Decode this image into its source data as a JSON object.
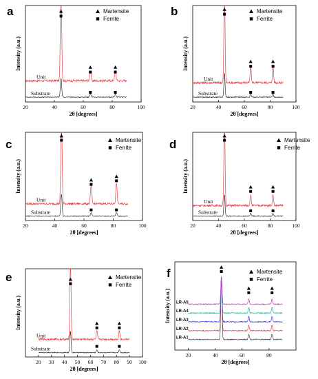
{
  "chart_data": [
    {
      "panel": "a",
      "type": "line",
      "xlabel": "2θ [degrees]",
      "ylabel": "Intensity (a.u.)",
      "xlim": [
        20,
        100
      ],
      "xticks": [
        20,
        40,
        60,
        80,
        100
      ],
      "legend": {
        "placement": "top-right",
        "entries": [
          {
            "name": "Martensite",
            "marker": "triangle"
          },
          {
            "name": "Ferrite",
            "marker": "square"
          }
        ]
      },
      "series": [
        {
          "name": "Unit",
          "color": "#e8424a",
          "baseline": 0.22,
          "noise": 0.012,
          "peaks": [
            [
              44.6,
              1.0
            ],
            [
              64.9,
              0.1
            ],
            [
              82.2,
              0.1
            ]
          ]
        },
        {
          "name": "Substrate",
          "color": "#333333",
          "baseline": 0.05,
          "noise": 0.005,
          "peaks": [
            [
              44.6,
              0.2
            ],
            [
              64.9,
              0.03
            ],
            [
              82.2,
              0.03
            ]
          ]
        }
      ],
      "markers": [
        [
          44.6,
          0.94,
          "triangle"
        ],
        [
          44.6,
          0.89,
          "square"
        ],
        [
          64.9,
          0.36,
          "triangle"
        ],
        [
          64.9,
          0.31,
          "square"
        ],
        [
          82.2,
          0.36,
          "triangle"
        ],
        [
          82.2,
          0.31,
          "square"
        ],
        [
          64.9,
          0.1,
          "square"
        ],
        [
          82.2,
          0.1,
          "square"
        ]
      ]
    },
    {
      "panel": "b",
      "type": "line",
      "xlabel": "2θ [degrees]",
      "ylabel": "Intensity (a.u.)",
      "xlim": [
        20,
        100
      ],
      "xticks": [
        20,
        40,
        60,
        80,
        100
      ],
      "legend": {
        "placement": "top-right",
        "entries": [
          {
            "name": "Martensite",
            "marker": "triangle"
          },
          {
            "name": "Ferrite",
            "marker": "square"
          }
        ]
      },
      "series": [
        {
          "name": "Unit",
          "color": "#e8424a",
          "baseline": 0.2,
          "noise": 0.012,
          "peaks": [
            [
              44.6,
              0.98
            ],
            [
              64.9,
              0.17
            ],
            [
              82.2,
              0.17
            ]
          ]
        },
        {
          "name": "Substrate",
          "color": "#333333",
          "baseline": 0.05,
          "noise": 0.005,
          "peaks": [
            [
              44.6,
              0.25
            ],
            [
              64.9,
              0.03
            ],
            [
              82.2,
              0.03
            ]
          ]
        }
      ],
      "markers": [
        [
          44.6,
          0.96,
          "triangle"
        ],
        [
          44.6,
          0.91,
          "square"
        ],
        [
          64.9,
          0.42,
          "triangle"
        ],
        [
          64.9,
          0.37,
          "square"
        ],
        [
          82.2,
          0.42,
          "triangle"
        ],
        [
          82.2,
          0.37,
          "square"
        ],
        [
          64.9,
          0.1,
          "square"
        ],
        [
          82.2,
          0.1,
          "square"
        ]
      ]
    },
    {
      "panel": "c",
      "type": "line",
      "xlabel": "2θ [degrees]",
      "ylabel": "Intensity (a.u.)",
      "xlim": [
        20,
        100
      ],
      "xticks": [
        20,
        40,
        60,
        80,
        100
      ],
      "legend": {
        "placement": "top-right",
        "entries": [
          {
            "name": "Martensite",
            "marker": "triangle"
          },
          {
            "name": "Ferrite",
            "marker": "square"
          }
        ]
      },
      "series": [
        {
          "name": "Unit",
          "color": "#e8424a",
          "baseline": 0.19,
          "noise": 0.012,
          "peaks": [
            [
              44.6,
              1.0
            ],
            [
              64.9,
              0.22
            ],
            [
              82.2,
              0.24
            ]
          ]
        },
        {
          "name": "Substrate",
          "color": "#333333",
          "baseline": 0.05,
          "noise": 0.005,
          "peaks": [
            [
              44.6,
              0.25
            ],
            [
              64.9,
              0.04
            ],
            [
              82.2,
              0.04
            ]
          ]
        }
      ],
      "markers": [
        [
          44.6,
          0.96,
          "triangle"
        ],
        [
          44.6,
          0.91,
          "square"
        ],
        [
          64.9,
          0.46,
          "triangle"
        ],
        [
          64.9,
          0.41,
          "square"
        ],
        [
          82.2,
          0.5,
          "triangle"
        ],
        [
          82.2,
          0.45,
          "square"
        ],
        [
          64.9,
          0.12,
          "square"
        ],
        [
          82.2,
          0.12,
          "square"
        ]
      ]
    },
    {
      "panel": "d",
      "type": "line",
      "xlabel": "2θ [degrees]",
      "ylabel": "Intensity (a.u.)",
      "xlim": [
        20,
        100
      ],
      "xticks": [
        20,
        40,
        60,
        80,
        100
      ],
      "legend": {
        "placement": "top-right",
        "entries": [
          {
            "name": "Martensite",
            "marker": "triangle"
          },
          {
            "name": "Ferrite",
            "marker": "square"
          }
        ]
      },
      "series": [
        {
          "name": "Unit",
          "color": "#e8424a",
          "baseline": 0.17,
          "noise": 0.012,
          "peaks": [
            [
              44.6,
              0.98
            ],
            [
              64.9,
              0.12
            ],
            [
              82.2,
              0.12
            ]
          ]
        },
        {
          "name": "Substrate",
          "color": "#333333",
          "baseline": 0.05,
          "noise": 0.005,
          "peaks": [
            [
              44.6,
              0.25
            ],
            [
              64.9,
              0.03
            ],
            [
              82.2,
              0.03
            ]
          ]
        }
      ],
      "markers": [
        [
          44.6,
          0.96,
          "triangle"
        ],
        [
          44.6,
          0.91,
          "square"
        ],
        [
          64.9,
          0.38,
          "triangle"
        ],
        [
          64.9,
          0.33,
          "square"
        ],
        [
          82.2,
          0.38,
          "triangle"
        ],
        [
          82.2,
          0.33,
          "square"
        ],
        [
          64.9,
          0.11,
          "square"
        ],
        [
          82.2,
          0.11,
          "square"
        ]
      ]
    },
    {
      "panel": "e",
      "type": "line",
      "xlabel": "2θ [degrees]",
      "ylabel": "Intensity (a.u.)",
      "xlim": [
        10,
        100
      ],
      "xticks": [
        20,
        30,
        40,
        50,
        60,
        70,
        80,
        90,
        100
      ],
      "legend": {
        "placement": "top-right",
        "entries": [
          {
            "name": "Martensite",
            "marker": "triangle"
          },
          {
            "name": "Ferrite",
            "marker": "square"
          }
        ]
      },
      "series": [
        {
          "name": "Unit",
          "color": "#e8424a",
          "baseline": 0.2,
          "noise": 0.012,
          "peaks": [
            [
              44.6,
              0.95
            ],
            [
              64.9,
              0.1
            ],
            [
              82.2,
              0.1
            ]
          ]
        },
        {
          "name": "Substrate",
          "color": "#333333",
          "baseline": 0.05,
          "noise": 0.005,
          "peaks": [
            [
              44.6,
              0.25
            ],
            [
              64.9,
              0.03
            ],
            [
              82.2,
              0.03
            ]
          ]
        }
      ],
      "markers": [
        [
          44.6,
          0.88,
          "triangle"
        ],
        [
          44.6,
          0.83,
          "square"
        ],
        [
          64.9,
          0.38,
          "triangle"
        ],
        [
          64.9,
          0.33,
          "square"
        ],
        [
          82.2,
          0.38,
          "triangle"
        ],
        [
          82.2,
          0.33,
          "square"
        ],
        [
          64.9,
          0.12,
          "square"
        ],
        [
          82.2,
          0.12,
          "square"
        ]
      ]
    },
    {
      "panel": "f",
      "type": "line",
      "xlabel": "2θ [degrees]",
      "ylabel": "Intensity (a.u.)",
      "xlim": [
        10,
        100
      ],
      "xticks": [
        20,
        40,
        60,
        80
      ],
      "legend": {
        "placement": "top-right",
        "entries": [
          {
            "name": "Martensite",
            "marker": "triangle"
          },
          {
            "name": "Ferrite",
            "marker": "square"
          }
        ]
      },
      "series": [
        {
          "name": "LR-A1",
          "color": "#444444",
          "baseline": 0.12,
          "noise": 0.006,
          "peaks": [
            [
              44.6,
              0.72
            ],
            [
              64.9,
              0.06
            ],
            [
              82.2,
              0.06
            ]
          ]
        },
        {
          "name": "LR-A2",
          "color": "#e8424a",
          "baseline": 0.22,
          "noise": 0.006,
          "peaks": [
            [
              44.6,
              0.62
            ],
            [
              64.9,
              0.06
            ],
            [
              82.2,
              0.06
            ]
          ]
        },
        {
          "name": "LR-A3",
          "color": "#3a3ad8",
          "baseline": 0.32,
          "noise": 0.006,
          "peaks": [
            [
              44.6,
              0.52
            ],
            [
              64.9,
              0.06
            ],
            [
              82.2,
              0.06
            ]
          ]
        },
        {
          "name": "LR-A4",
          "color": "#2aa89a",
          "baseline": 0.42,
          "noise": 0.006,
          "peaks": [
            [
              44.6,
              0.42
            ],
            [
              64.9,
              0.06
            ],
            [
              82.2,
              0.06
            ]
          ]
        },
        {
          "name": "LR-A5",
          "color": "#c43cc4",
          "baseline": 0.52,
          "noise": 0.006,
          "peaks": [
            [
              44.6,
              0.32
            ],
            [
              64.9,
              0.06
            ],
            [
              82.2,
              0.06
            ]
          ]
        }
      ],
      "markers": [
        [
          44.6,
          0.94,
          "triangle"
        ],
        [
          44.6,
          0.89,
          "square"
        ],
        [
          64.9,
          0.7,
          "triangle"
        ],
        [
          64.9,
          0.65,
          "square"
        ],
        [
          82.2,
          0.7,
          "triangle"
        ],
        [
          82.2,
          0.65,
          "square"
        ]
      ]
    }
  ]
}
